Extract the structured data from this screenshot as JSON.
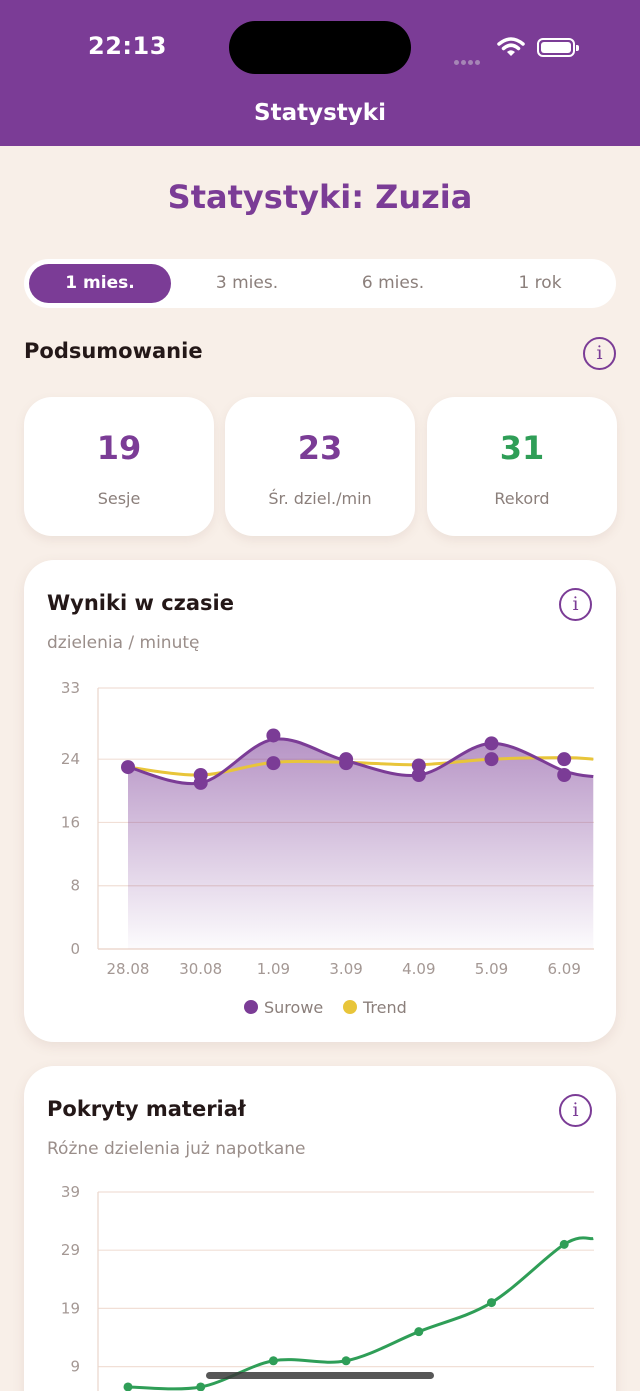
{
  "status_bar": {
    "time": "22:13"
  },
  "nav": {
    "title": "Statystyki"
  },
  "page": {
    "title": "Statystyki: Zuzia"
  },
  "periods": [
    {
      "label": "1 mies.",
      "active": true
    },
    {
      "label": "3 mies.",
      "active": false
    },
    {
      "label": "6 mies.",
      "active": false
    },
    {
      "label": "1 rok",
      "active": false
    }
  ],
  "summary": {
    "title": "Podsumowanie",
    "info_icon": "info-icon",
    "stats": [
      {
        "value": "19",
        "label": "Sesje",
        "color": "#7b3c96"
      },
      {
        "value": "23",
        "label": "Śr. dziel./min",
        "color": "#7b3c96"
      },
      {
        "value": "31",
        "label": "Rekord",
        "color": "#2f9e57"
      }
    ]
  },
  "results_card": {
    "title": "Wyniki w czasie",
    "subtitle": "dzielenia / minutę",
    "legend": [
      {
        "label": "Surowe",
        "color": "#7b3c96"
      },
      {
        "label": "Trend",
        "color": "#e8c53a"
      }
    ]
  },
  "coverage_card": {
    "title": "Pokryty materiał",
    "subtitle": "Różne dzielenia już napotkane"
  },
  "chart_data": [
    {
      "type": "line",
      "y_ticks": [
        "0",
        "8",
        "16",
        "24",
        "33"
      ],
      "ylim": [
        0,
        33
      ],
      "x_ticks": [
        "28.08",
        "30.08",
        "1.09",
        "3.09",
        "4.09",
        "5.09",
        "6.09"
      ],
      "grid": true,
      "legend_placement": "bottom",
      "series": [
        {
          "name": "Surowe",
          "color": "#7b3c96",
          "points": [
            [
              0,
              23
            ],
            [
              1,
              21
            ],
            [
              1,
              22
            ],
            [
              2,
              27
            ],
            [
              2,
              23.5
            ],
            [
              3,
              24
            ],
            [
              3,
              23.5
            ],
            [
              4,
              23.2
            ],
            [
              4,
              22
            ],
            [
              5,
              26
            ],
            [
              5,
              24
            ],
            [
              6,
              24
            ],
            [
              6,
              22
            ]
          ]
        },
        {
          "name": "Trend",
          "color": "#e8c53a",
          "points": [
            [
              0,
              23
            ],
            [
              1,
              22
            ],
            [
              2,
              23.6
            ],
            [
              3,
              23.6
            ],
            [
              4,
              23.3
            ],
            [
              5,
              24.0
            ],
            [
              6,
              24.2
            ],
            [
              6.4,
              24.0
            ]
          ]
        }
      ]
    },
    {
      "type": "line",
      "y_ticks": [
        "9",
        "19",
        "29",
        "39"
      ],
      "ylim": [
        5,
        39
      ],
      "grid": true,
      "series": [
        {
          "color": "#2f9e57",
          "points": [
            [
              0,
              5.5
            ],
            [
              1,
              5.5
            ],
            [
              2,
              10
            ],
            [
              3,
              10
            ],
            [
              4,
              15
            ],
            [
              5,
              20
            ],
            [
              6,
              30
            ],
            [
              6.4,
              31
            ]
          ]
        }
      ]
    }
  ]
}
